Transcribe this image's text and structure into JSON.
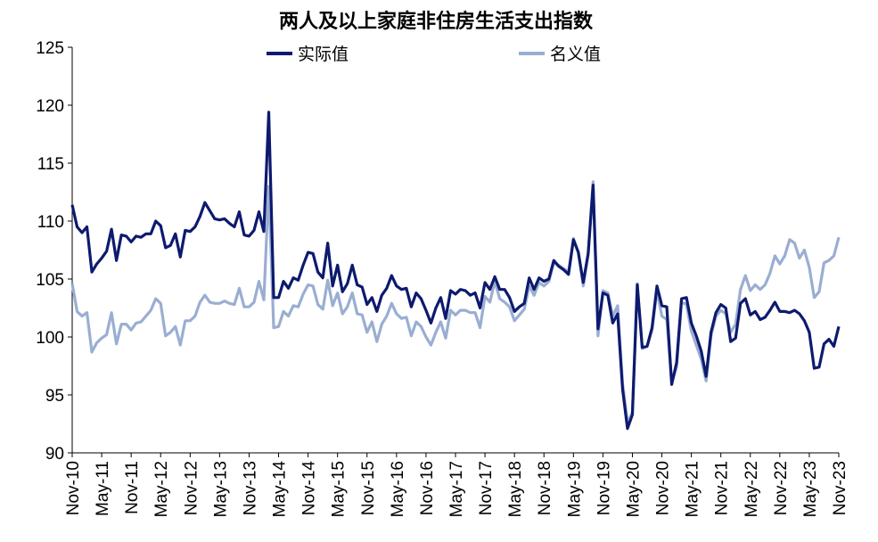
{
  "chart_data": {
    "type": "line",
    "title": "两人及以上家庭非住房生活支出指数",
    "xlabel": "",
    "ylabel": "",
    "ylim": [
      90,
      125
    ],
    "yticks": [
      90,
      95,
      100,
      105,
      110,
      115,
      120,
      125
    ],
    "x_start": "Nov-10",
    "x_end": "Nov-23",
    "xticks": [
      "Nov-10",
      "May-11",
      "Nov-11",
      "May-12",
      "Nov-12",
      "May-13",
      "Nov-13",
      "May-14",
      "Nov-14",
      "May-15",
      "Nov-15",
      "May-16",
      "Nov-16",
      "May-17",
      "Nov-17",
      "May-18",
      "Nov-18",
      "May-19",
      "Nov-19",
      "May-20",
      "Nov-20",
      "May-21",
      "Nov-21",
      "May-22",
      "Nov-22",
      "May-23",
      "Nov-23"
    ],
    "grid": false,
    "legend_position": "top",
    "series": [
      {
        "name": "实际值",
        "color": "#0d1a6e",
        "values": [
          111.4,
          109.5,
          109.0,
          109.5,
          105.6,
          106.3,
          106.8,
          107.4,
          109.3,
          106.6,
          108.8,
          108.7,
          108.2,
          108.7,
          108.6,
          108.9,
          108.9,
          110.0,
          109.6,
          107.7,
          107.9,
          108.9,
          106.9,
          109.2,
          109.1,
          109.5,
          110.4,
          111.6,
          110.9,
          110.2,
          110.1,
          110.2,
          109.8,
          109.5,
          110.8,
          108.8,
          108.7,
          109.2,
          110.8,
          109.1,
          119.4,
          103.4,
          103.4,
          104.8,
          104.2,
          105.1,
          104.9,
          106.2,
          107.3,
          107.2,
          105.6,
          105.1,
          108.1,
          104.4,
          106.2,
          103.9,
          104.6,
          106.2,
          104.5,
          104.3,
          102.8,
          103.4,
          102.2,
          103.6,
          104.2,
          105.3,
          104.4,
          104.1,
          104.2,
          102.6,
          103.8,
          103.3,
          102.3,
          101.2,
          102.5,
          103.4,
          101.6,
          104.0,
          103.7,
          104.1,
          104.0,
          103.6,
          103.8,
          102.5,
          104.7,
          104.1,
          105.2,
          104.1,
          104.1,
          103.4,
          102.2,
          102.6,
          102.9,
          105.1,
          104.1,
          105.1,
          104.8,
          105.0,
          106.6,
          106.1,
          105.8,
          105.4,
          108.4,
          107.3,
          104.7,
          107.2,
          113.1,
          100.7,
          103.8,
          103.6,
          101.2,
          102.0,
          95.5,
          92.1,
          93.3,
          104.5,
          99.1,
          99.2,
          100.8,
          104.4,
          102.7,
          102.6,
          95.9,
          97.8,
          103.3,
          103.4,
          101.2,
          100.1,
          98.8,
          96.6,
          100.4,
          102.1,
          102.8,
          102.5,
          99.6,
          99.9,
          102.9,
          103.3,
          101.9,
          102.2,
          101.5,
          101.7,
          102.3,
          103.0,
          102.2,
          102.2,
          102.1,
          102.3,
          102.0,
          101.4,
          100.4,
          97.3,
          97.4,
          99.4,
          99.8,
          99.2,
          100.9
        ]
      },
      {
        "name": "名义值",
        "color": "#9aaed2",
        "values": [
          104.6,
          102.2,
          101.8,
          102.1,
          98.7,
          99.5,
          99.9,
          100.2,
          102.1,
          99.4,
          101.1,
          101.1,
          100.6,
          101.2,
          101.3,
          101.8,
          102.3,
          103.3,
          102.9,
          100.1,
          100.4,
          100.9,
          99.3,
          101.4,
          101.4,
          101.8,
          103.0,
          103.6,
          103.0,
          102.9,
          102.9,
          103.1,
          102.9,
          102.8,
          104.2,
          102.6,
          102.6,
          103.0,
          104.8,
          103.2,
          113.0,
          100.8,
          100.9,
          102.2,
          101.8,
          102.7,
          102.6,
          103.7,
          104.5,
          104.4,
          102.8,
          102.4,
          104.9,
          102.7,
          103.8,
          102.0,
          102.6,
          103.8,
          102.0,
          101.9,
          100.4,
          101.3,
          99.6,
          101.1,
          101.8,
          102.9,
          102.0,
          101.6,
          101.7,
          100.1,
          101.3,
          100.9,
          100.0,
          99.3,
          100.4,
          101.3,
          99.9,
          102.3,
          101.9,
          102.3,
          102.3,
          102.1,
          102.1,
          100.8,
          103.5,
          103.0,
          104.8,
          103.3,
          103.0,
          102.6,
          101.4,
          101.9,
          102.4,
          104.4,
          103.6,
          104.7,
          104.4,
          104.8,
          106.4,
          106.2,
          105.9,
          105.6,
          108.5,
          107.3,
          104.4,
          107.1,
          113.4,
          100.1,
          104.0,
          103.8,
          101.8,
          102.7,
          96.0,
          92.6,
          93.5,
          104.6,
          99.0,
          99.2,
          100.6,
          104.0,
          101.8,
          101.5,
          96.1,
          97.4,
          103.0,
          102.8,
          100.5,
          99.3,
          98.1,
          96.2,
          100.1,
          101.8,
          102.3,
          102.0,
          100.4,
          101.1,
          104.1,
          105.3,
          104.0,
          104.5,
          104.1,
          104.5,
          105.5,
          107.0,
          106.3,
          107.0,
          108.4,
          108.1,
          106.8,
          107.5,
          106.0,
          103.4,
          103.9,
          106.4,
          106.6,
          107.0,
          108.6
        ]
      }
    ]
  }
}
